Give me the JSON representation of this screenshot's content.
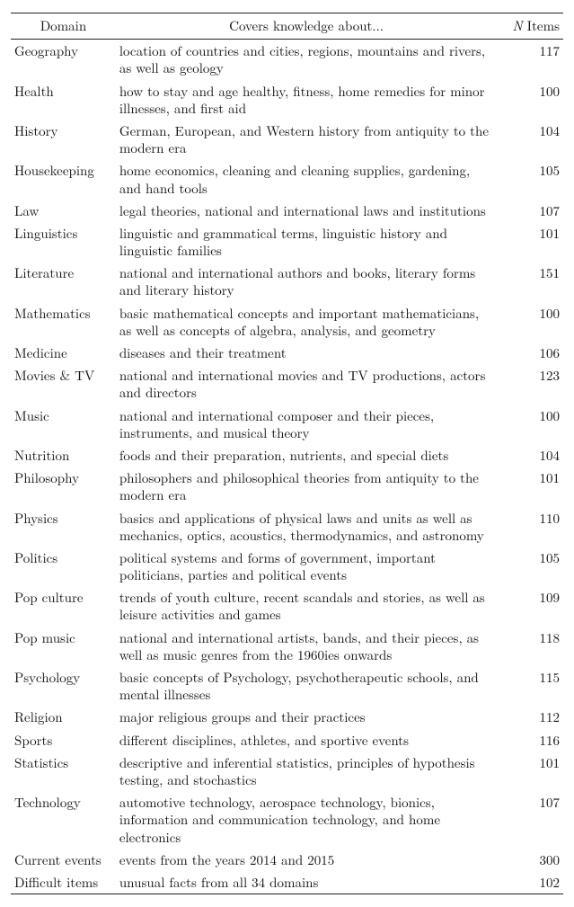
{
  "table": {
    "headers": {
      "domain": "Domain",
      "coverage": "Covers knowledge about...",
      "n_items_prefix": "N",
      "n_items_suffix": " Items"
    },
    "rows": [
      {
        "domain": "Geography",
        "coverage": "location of countries and cities, regions, mountains and rivers, as well as geology",
        "n": 117
      },
      {
        "domain": "Health",
        "coverage": "how to stay and age healthy, fitness, home remedies for minor illnesses, and first aid",
        "n": 100
      },
      {
        "domain": "History",
        "coverage": "German, European, and Western history from antiquity to the modern era",
        "n": 104
      },
      {
        "domain": "Housekeeping",
        "coverage": "home economics, cleaning and cleaning supplies, gardening, and hand tools",
        "n": 105
      },
      {
        "domain": "Law",
        "coverage": "legal theories, national and international laws and institutions",
        "n": 107
      },
      {
        "domain": "Linguistics",
        "coverage": "linguistic and grammatical terms, linguistic history and linguistic families",
        "n": 101
      },
      {
        "domain": "Literature",
        "coverage": "national and international authors and books, literary forms and literary history",
        "n": 151
      },
      {
        "domain": "Mathematics",
        "coverage": "basic mathematical concepts and important mathematicians, as well as concepts of algebra, analysis, and geometry",
        "n": 100
      },
      {
        "domain": "Medicine",
        "coverage": "diseases and their treatment",
        "n": 106
      },
      {
        "domain": "Movies & TV",
        "coverage": "national and international movies and TV productions, actors and directors",
        "n": 123
      },
      {
        "domain": "Music",
        "coverage": "national and international composer and their pieces, instruments, and musical theory",
        "n": 100
      },
      {
        "domain": "Nutrition",
        "coverage": "foods and their preparation, nutrients, and special diets",
        "n": 104
      },
      {
        "domain": "Philosophy",
        "coverage": "philosophers and philosophical theories from antiquity to the modern era",
        "n": 101
      },
      {
        "domain": "Physics",
        "coverage": "basics and applications of physical laws and units as well as mechanics, optics, acoustics, thermodynamics, and astronomy",
        "n": 110
      },
      {
        "domain": "Politics",
        "coverage": "political systems and forms of government, important politicians, parties and political events",
        "n": 105
      },
      {
        "domain": "Pop culture",
        "coverage": "trends of youth culture, recent scandals and stories, as well as leisure activities and games",
        "n": 109
      },
      {
        "domain": "Pop music",
        "coverage": "national and international artists, bands, and their pieces, as well as music genres from the 1960ies onwards",
        "n": 118
      },
      {
        "domain": "Psychology",
        "coverage": "basic concepts of Psychology, psychotherapeutic schools, and mental illnesses",
        "n": 115
      },
      {
        "domain": "Religion",
        "coverage": "major religious groups and their practices",
        "n": 112
      },
      {
        "domain": "Sports",
        "coverage": "different disciplines, athletes, and sportive events",
        "n": 116
      },
      {
        "domain": "Statistics",
        "coverage": "descriptive and inferential statistics, principles of hypothesis testing, and stochastics",
        "n": 101
      },
      {
        "domain": "Technology",
        "coverage": "automotive technology, aerospace technology, bionics, information and communication technology, and home electronics",
        "n": 107
      },
      {
        "domain": "Current events",
        "coverage": "events from the years 2014 and 2015",
        "n": 300
      },
      {
        "domain": "Difficult items",
        "coverage": "unusual facts from all 34 domains",
        "n": 102
      }
    ]
  }
}
